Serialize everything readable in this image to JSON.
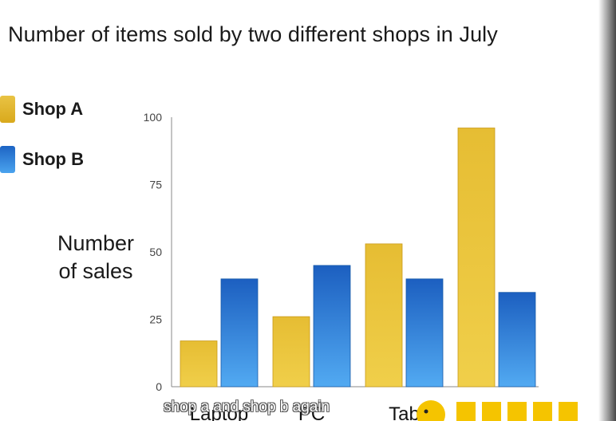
{
  "title": "Number of items sold by two different shops in July",
  "legend": [
    {
      "label": "Shop A",
      "color": "#e8bd2e"
    },
    {
      "label": "Shop B",
      "color": "#2a7fd4"
    }
  ],
  "caption": "shop a and shop b again",
  "chart_data": {
    "type": "bar",
    "title": "Number of items sold by two different shops in July",
    "xlabel": "",
    "ylabel": "Number of sales",
    "ylabel_lines": [
      "Number",
      "of sales"
    ],
    "categories": [
      "Laptop",
      "PC",
      "Tablet",
      ""
    ],
    "category_labels_visible": [
      "Laptop",
      "PC",
      "Tab",
      ""
    ],
    "series": [
      {
        "name": "Shop A",
        "values": [
          17,
          26,
          53,
          96
        ],
        "color": "#e8bd2e"
      },
      {
        "name": "Shop B",
        "values": [
          40,
          45,
          40,
          35
        ],
        "color": "#2a7fd4"
      }
    ],
    "ylim": [
      0,
      100
    ],
    "yticks": [
      0,
      25,
      50,
      75,
      100
    ],
    "grid": false,
    "legend_position": "left"
  }
}
